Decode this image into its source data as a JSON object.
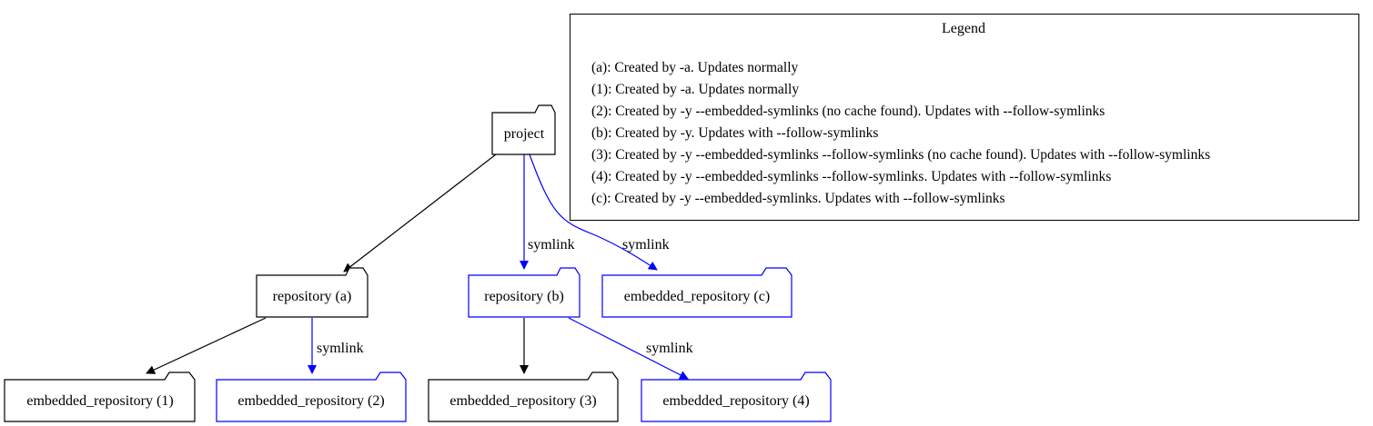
{
  "diagram": {
    "colors": {
      "plain": "#000000",
      "symlink": "#0000ff",
      "background": "#ffffff"
    },
    "nodes": [
      {
        "id": "project",
        "label": "project",
        "color": "plain",
        "icon": "folder-icon"
      },
      {
        "id": "repo_a",
        "label": "repository (a)",
        "color": "plain",
        "icon": "folder-icon"
      },
      {
        "id": "repo_b",
        "label": "repository (b)",
        "color": "symlink",
        "icon": "folder-icon"
      },
      {
        "id": "emb_c",
        "label": "embedded_repository (c)",
        "color": "symlink",
        "icon": "folder-icon"
      },
      {
        "id": "emb_1",
        "label": "embedded_repository (1)",
        "color": "plain",
        "icon": "folder-icon"
      },
      {
        "id": "emb_2",
        "label": "embedded_repository (2)",
        "color": "symlink",
        "icon": "folder-icon"
      },
      {
        "id": "emb_3",
        "label": "embedded_repository (3)",
        "color": "plain",
        "icon": "folder-icon"
      },
      {
        "id": "emb_4",
        "label": "embedded_repository (4)",
        "color": "symlink",
        "icon": "folder-icon"
      }
    ],
    "edges": [
      {
        "from": "project",
        "to": "repo_a",
        "label": "",
        "color": "plain"
      },
      {
        "from": "project",
        "to": "repo_b",
        "label": "symlink",
        "color": "symlink"
      },
      {
        "from": "project",
        "to": "emb_c",
        "label": "symlink",
        "color": "symlink"
      },
      {
        "from": "repo_a",
        "to": "emb_1",
        "label": "",
        "color": "plain"
      },
      {
        "from": "repo_a",
        "to": "emb_2",
        "label": "symlink",
        "color": "symlink"
      },
      {
        "from": "repo_b",
        "to": "emb_3",
        "label": "",
        "color": "plain"
      },
      {
        "from": "repo_b",
        "to": "emb_4",
        "label": "symlink",
        "color": "symlink"
      }
    ],
    "legend": {
      "title": "Legend",
      "lines": [
        "(a): Created by -a. Updates normally",
        "(1): Created by -a. Updates normally",
        "(2): Created by -y --embedded-symlinks (no cache found). Updates with --follow-symlinks",
        "(b): Created by -y. Updates with --follow-symlinks",
        "(3): Created by -y --embedded-symlinks --follow-symlinks (no cache found). Updates with --follow-symlinks",
        "(4): Created by -y --embedded-symlinks --follow-symlinks. Updates with --follow-symlinks",
        "(c): Created by -y --embedded-symlinks. Updates with --follow-symlinks"
      ]
    }
  }
}
